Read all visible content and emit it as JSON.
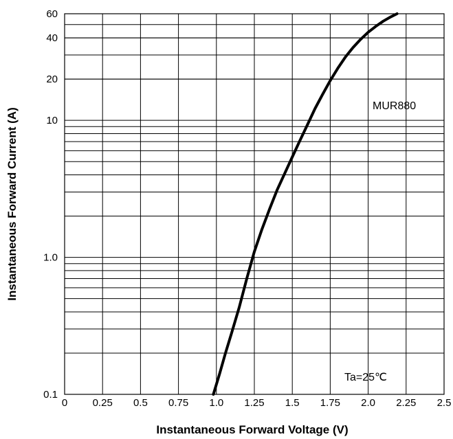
{
  "chart_data": {
    "type": "line",
    "xlabel": "Instantaneous Forward Voltage (V)",
    "ylabel": "Instantaneous Forward Current (A)",
    "x_scale": "linear",
    "y_scale": "log",
    "xlim": [
      0,
      2.5
    ],
    "ylim": [
      0.1,
      60
    ],
    "x_ticks": [
      0,
      0.25,
      0.5,
      0.75,
      1.0,
      1.25,
      1.5,
      1.75,
      2.0,
      2.25,
      2.5
    ],
    "x_tick_labels": [
      "0",
      "0.25",
      "0.5",
      "0.75",
      "1.0",
      "1.25",
      "1.5",
      "1.75",
      "2.0",
      "2.25",
      "2.5"
    ],
    "y_tick_values": [
      0.1,
      1.0,
      10,
      20,
      40,
      60
    ],
    "y_tick_labels": [
      "0.1",
      "1.0",
      "10",
      "20",
      "40",
      "60"
    ],
    "y_minor_grid": [
      0.2,
      0.3,
      0.4,
      0.5,
      0.6,
      0.7,
      0.8,
      0.9,
      2,
      3,
      4,
      5,
      6,
      7,
      8,
      9,
      20,
      30,
      40,
      50
    ],
    "grid": true,
    "series": [
      {
        "name": "MUR880",
        "color": "#000000",
        "x": [
          0.98,
          1.02,
          1.06,
          1.1,
          1.15,
          1.2,
          1.25,
          1.3,
          1.35,
          1.4,
          1.45,
          1.5,
          1.55,
          1.6,
          1.65,
          1.7,
          1.75,
          1.8,
          1.85,
          1.9,
          1.95,
          2.0,
          2.05,
          2.1,
          2.15,
          2.19
        ],
        "y": [
          0.1,
          0.14,
          0.2,
          0.28,
          0.43,
          0.7,
          1.1,
          1.6,
          2.25,
          3.1,
          4.1,
          5.4,
          7.1,
          9.3,
          12.2,
          15.5,
          19.5,
          24,
          29,
          34,
          39,
          44,
          48.5,
          53,
          57,
          60
        ]
      }
    ],
    "annotations": [
      {
        "text": "MUR880"
      },
      {
        "text": "Ta=25℃"
      }
    ]
  }
}
